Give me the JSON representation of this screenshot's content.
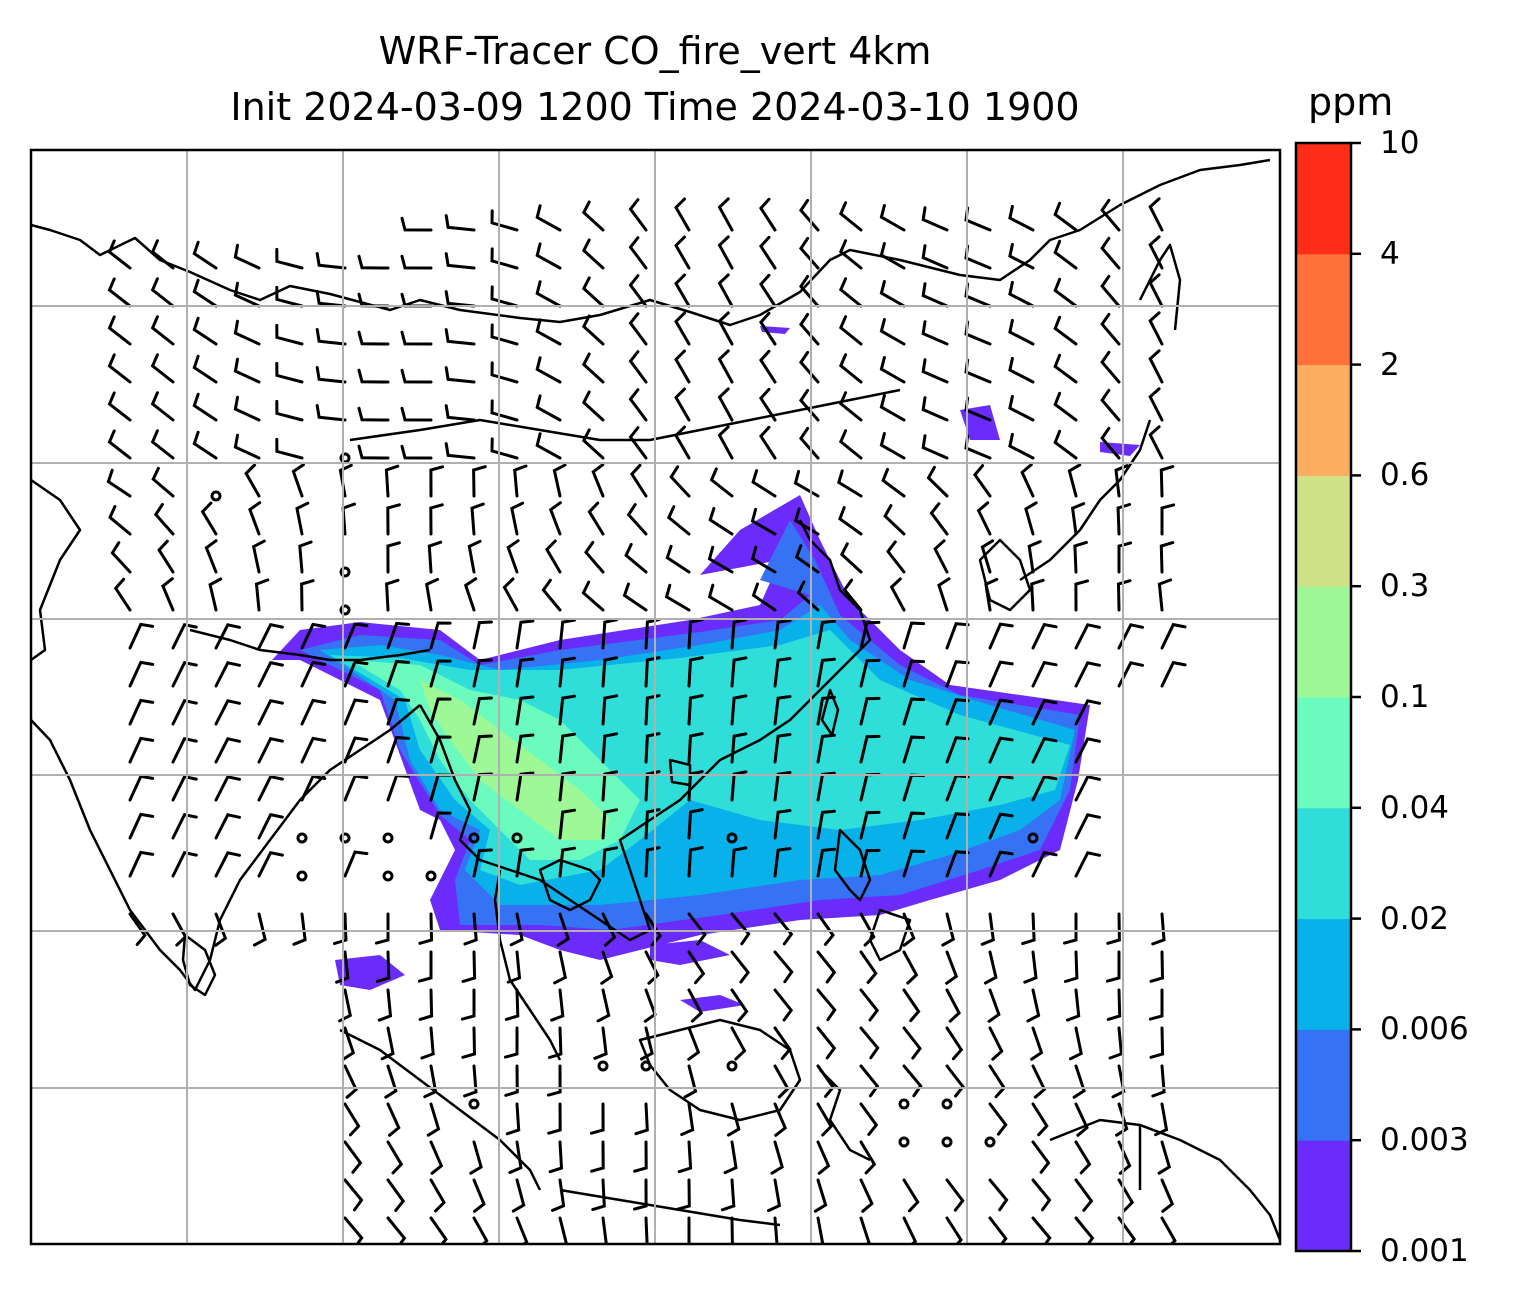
{
  "title": {
    "line1": "WRF-Tracer CO_fire_vert 4km",
    "line2": "Init 2024-03-09 1200 Time 2024-03-10 1900"
  },
  "colorbar": {
    "unit": "ppm",
    "tick_labels": [
      "0.001",
      "0.003",
      "0.006",
      "0.02",
      "0.04",
      "0.1",
      "0.3",
      "0.6",
      "2",
      "4",
      "10"
    ],
    "colors": [
      "#6a2bfb",
      "#3572f4",
      "#08b1ea",
      "#2fded8",
      "#6cfbbe",
      "#9ff896",
      "#d0e188",
      "#fcad60",
      "#ff7139",
      "#ff2d17"
    ]
  },
  "map": {
    "gridline_color": "#b0b0b0",
    "coastline_color": "#000000",
    "barb_color": "#000000",
    "layers": [
      "CO fire tracer concentration (filled)",
      "wind barbs",
      "coastlines and borders",
      "lat/lon gridlines"
    ]
  }
}
